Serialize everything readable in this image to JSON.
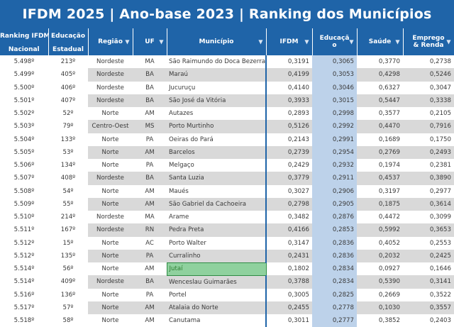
{
  "title": "IFDM 2025 | Ano-base 2023 | Ranking dos Municípios",
  "header": {
    "ranking": "Ranking IFDM",
    "educacao": "Educação",
    "nacional": "Nacional",
    "estadual": "Estadual",
    "regiao": "Região",
    "uf": "UF",
    "municipio": "Município",
    "ifdm": "IFDM",
    "educ_col_1": "Educaçã",
    "educ_col_2": "o",
    "saude": "Saúde",
    "emprego_1": "Emprego",
    "emprego_2": "& Renda",
    "filter_icon": "filter-dropdown-icon"
  },
  "rows": [
    {
      "nac": "5.498º",
      "est": "213º",
      "reg": "Nordeste",
      "uf": "MA",
      "mun": "São Raimundo do Doca Bezerra",
      "ifdm": "0,3191",
      "edu": "0,3065",
      "sau": "0,3770",
      "emp": "0,2738"
    },
    {
      "nac": "5.499º",
      "est": "405º",
      "reg": "Nordeste",
      "uf": "BA",
      "mun": "Maraú",
      "ifdm": "0,4199",
      "edu": "0,3053",
      "sau": "0,4298",
      "emp": "0,5246"
    },
    {
      "nac": "5.500º",
      "est": "406º",
      "reg": "Nordeste",
      "uf": "BA",
      "mun": "Jucuruçu",
      "ifdm": "0,4140",
      "edu": "0,3046",
      "sau": "0,6327",
      "emp": "0,3047"
    },
    {
      "nac": "5.501º",
      "est": "407º",
      "reg": "Nordeste",
      "uf": "BA",
      "mun": "São José da Vitória",
      "ifdm": "0,3933",
      "edu": "0,3015",
      "sau": "0,5447",
      "emp": "0,3338"
    },
    {
      "nac": "5.502º",
      "est": "52º",
      "reg": "Norte",
      "uf": "AM",
      "mun": "Autazes",
      "ifdm": "0,2893",
      "edu": "0,2998",
      "sau": "0,3577",
      "emp": "0,2105"
    },
    {
      "nac": "5.503º",
      "est": "79º",
      "reg": "Centro-Oest",
      "uf": "MS",
      "mun": "Porto Murtinho",
      "ifdm": "0,5126",
      "edu": "0,2992",
      "sau": "0,4470",
      "emp": "0,7916"
    },
    {
      "nac": "5.504º",
      "est": "133º",
      "reg": "Norte",
      "uf": "PA",
      "mun": "Oeiras do Pará",
      "ifdm": "0,2143",
      "edu": "0,2991",
      "sau": "0,1689",
      "emp": "0,1750"
    },
    {
      "nac": "5.505º",
      "est": "53º",
      "reg": "Norte",
      "uf": "AM",
      "mun": "Barcelos",
      "ifdm": "0,2739",
      "edu": "0,2954",
      "sau": "0,2769",
      "emp": "0,2493"
    },
    {
      "nac": "5.506º",
      "est": "134º",
      "reg": "Norte",
      "uf": "PA",
      "mun": "Melgaço",
      "ifdm": "0,2429",
      "edu": "0,2932",
      "sau": "0,1974",
      "emp": "0,2381"
    },
    {
      "nac": "5.507º",
      "est": "408º",
      "reg": "Nordeste",
      "uf": "BA",
      "mun": "Santa Luzia",
      "ifdm": "0,3779",
      "edu": "0,2911",
      "sau": "0,4537",
      "emp": "0,3890"
    },
    {
      "nac": "5.508º",
      "est": "54º",
      "reg": "Norte",
      "uf": "AM",
      "mun": "Maués",
      "ifdm": "0,3027",
      "edu": "0,2906",
      "sau": "0,3197",
      "emp": "0,2977"
    },
    {
      "nac": "5.509º",
      "est": "55º",
      "reg": "Norte",
      "uf": "AM",
      "mun": "São Gabriel da Cachoeira",
      "ifdm": "0,2798",
      "edu": "0,2905",
      "sau": "0,1875",
      "emp": "0,3614"
    },
    {
      "nac": "5.510º",
      "est": "214º",
      "reg": "Nordeste",
      "uf": "MA",
      "mun": "Arame",
      "ifdm": "0,3482",
      "edu": "0,2876",
      "sau": "0,4472",
      "emp": "0,3099"
    },
    {
      "nac": "5.511º",
      "est": "167º",
      "reg": "Nordeste",
      "uf": "RN",
      "mun": "Pedra Preta",
      "ifdm": "0,4166",
      "edu": "0,2853",
      "sau": "0,5992",
      "emp": "0,3653"
    },
    {
      "nac": "5.512º",
      "est": "15º",
      "reg": "Norte",
      "uf": "AC",
      "mun": "Porto Walter",
      "ifdm": "0,3147",
      "edu": "0,2836",
      "sau": "0,4052",
      "emp": "0,2553"
    },
    {
      "nac": "5.512º",
      "est": "135º",
      "reg": "Norte",
      "uf": "PA",
      "mun": "Curralinho",
      "ifdm": "0,2431",
      "edu": "0,2836",
      "sau": "0,2032",
      "emp": "0,2425"
    },
    {
      "nac": "5.514º",
      "est": "56º",
      "reg": "Norte",
      "uf": "AM",
      "mun": "Jutaí",
      "ifdm": "0,1802",
      "edu": "0,2834",
      "sau": "0,0927",
      "emp": "0,1646"
    },
    {
      "nac": "5.514º",
      "est": "409º",
      "reg": "Nordeste",
      "uf": "BA",
      "mun": "Wenceslau Guimarães",
      "ifdm": "0,3788",
      "edu": "0,2834",
      "sau": "0,5390",
      "emp": "0,3141"
    },
    {
      "nac": "5.516º",
      "est": "136º",
      "reg": "Norte",
      "uf": "PA",
      "mun": "Portel",
      "ifdm": "0,3005",
      "edu": "0,2825",
      "sau": "0,2669",
      "emp": "0,3522"
    },
    {
      "nac": "5.517º",
      "est": "57º",
      "reg": "Norte",
      "uf": "AM",
      "mun": "Atalaia do Norte",
      "ifdm": "0,2455",
      "edu": "0,2778",
      "sau": "0,1030",
      "emp": "0,3557"
    },
    {
      "nac": "5.518º",
      "est": "58º",
      "reg": "Norte",
      "uf": "AM",
      "mun": "Canutama",
      "ifdm": "0,3011",
      "edu": "0,2777",
      "sau": "0,3852",
      "emp": "0,2403"
    }
  ]
}
